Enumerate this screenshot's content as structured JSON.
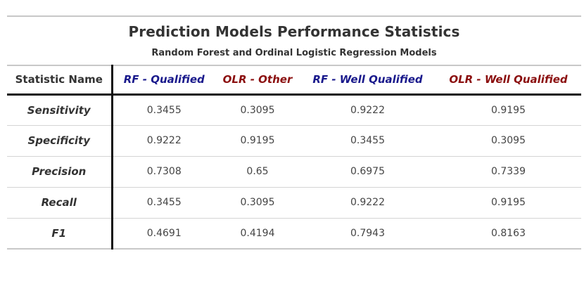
{
  "table": {
    "title": "Prediction Models Performance Statistics",
    "subtitle": "Random Forest and Ordinal Logistic Regression Models",
    "columns": [
      "Statistic Name",
      "RF - Qualified",
      "OLR - Other",
      "RF - Well Qualified",
      "OLR - Well Qualified"
    ],
    "rows": [
      {
        "name": "Sensitivity",
        "values": [
          "0.3455",
          "0.3095",
          "0.9222",
          "0.9195"
        ]
      },
      {
        "name": "Specificity",
        "values": [
          "0.9222",
          "0.9195",
          "0.3455",
          "0.3095"
        ]
      },
      {
        "name": "Precision",
        "values": [
          "0.7308",
          "0.65",
          "0.6975",
          "0.7339"
        ]
      },
      {
        "name": "Recall",
        "values": [
          "0.3455",
          "0.3095",
          "0.9222",
          "0.9195"
        ]
      },
      {
        "name": "F1",
        "values": [
          "0.4691",
          "0.4194",
          "0.7943",
          "0.8163"
        ]
      }
    ],
    "colors": {
      "rf_header": "#1a1a8c",
      "olr_header": "#8b0f0f",
      "text": "#333333",
      "rule": "#c8c8c8"
    }
  }
}
